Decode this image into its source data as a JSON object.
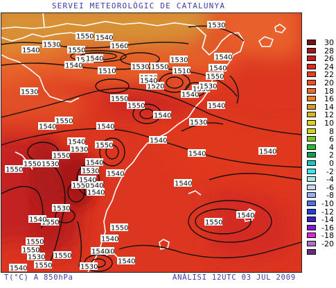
{
  "header": {
    "title": "SERVEI METEOROLÒGIC DE CATALUNYA"
  },
  "footer": {
    "variable": "T(°C) A 850hPa",
    "analysis": "ANÀLISI 12UTC 03 JUL 2009"
  },
  "legend": {
    "levels": [
      {
        "value": "30",
        "color": "#7a1010"
      },
      {
        "value": "28",
        "color": "#a01818"
      },
      {
        "value": "26",
        "color": "#c02020"
      },
      {
        "value": "24",
        "color": "#dc2c1e"
      },
      {
        "value": "22",
        "color": "#e8401e"
      },
      {
        "value": "20",
        "color": "#ec5426"
      },
      {
        "value": "18",
        "color": "#ee6a2a"
      },
      {
        "value": "16",
        "color": "#e8802c"
      },
      {
        "value": "14",
        "color": "#d89a30"
      },
      {
        "value": "12",
        "color": "#d8b428"
      },
      {
        "value": "10",
        "color": "#e0d020"
      },
      {
        "value": "8",
        "color": "#c8d818"
      },
      {
        "value": "6",
        "color": "#78c82a"
      },
      {
        "value": "4",
        "color": "#28b832"
      },
      {
        "value": "2",
        "color": "#10a050"
      },
      {
        "value": "0",
        "color": "#18c8b8"
      },
      {
        "value": "-2",
        "color": "#38e8e8"
      },
      {
        "value": "-4",
        "color": "#a8e8f0"
      },
      {
        "value": "-6",
        "color": "#c8d8f8"
      },
      {
        "value": "-8",
        "color": "#9ab0f0"
      },
      {
        "value": "-10",
        "color": "#5070e8"
      },
      {
        "value": "-12",
        "color": "#2040d8"
      },
      {
        "value": "-14",
        "color": "#4020c8"
      },
      {
        "value": "-16",
        "color": "#8818d0"
      },
      {
        "value": "-18",
        "color": "#d828d8"
      },
      {
        "value": "-20",
        "color": "#b070c8"
      }
    ]
  },
  "contour_labels": [
    "1530",
    "1550",
    "1540",
    "1530",
    "1540",
    "1560",
    "1550",
    "1520",
    "1540",
    "1540",
    "1530",
    "1510",
    "1530",
    "1550",
    "1530",
    "1520",
    "1510",
    "1550",
    "1540",
    "1540",
    "1530",
    "1530",
    "1540",
    "1540",
    "1550",
    "1530",
    "1550",
    "1540",
    "1540",
    "1540",
    "1550",
    "1540",
    "1530",
    "1550",
    "1540",
    "1530",
    "1540",
    "1540",
    "1550",
    "1530",
    "1540",
    "1540",
    "1550",
    "1540",
    "1530",
    "1550",
    "1540",
    "1550",
    "1540",
    "1530",
    "1530",
    "1550",
    "1540",
    "1550",
    "1540",
    "1550",
    "1550",
    "1540",
    "1550",
    "1540",
    "1540",
    "1540",
    "1540",
    "1550",
    "1530",
    "1540",
    "1550",
    "1540"
  ]
}
